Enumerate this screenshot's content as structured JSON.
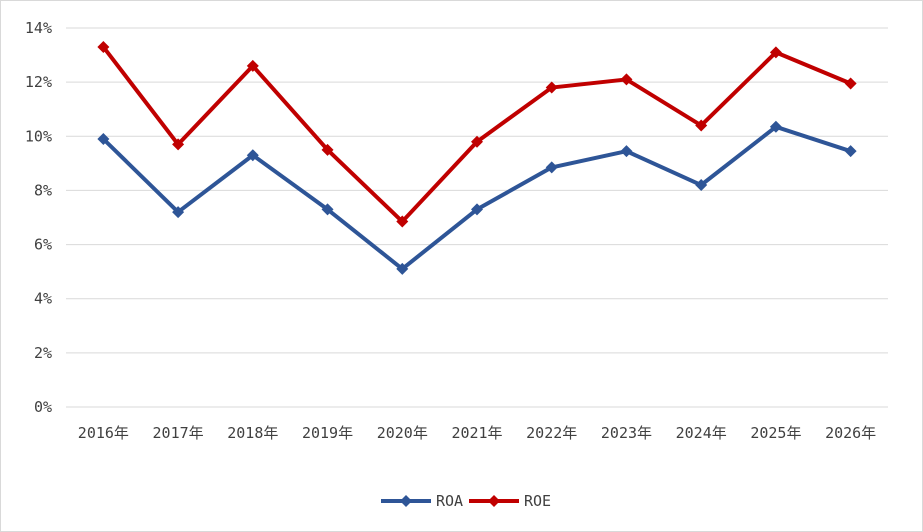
{
  "chart_data": {
    "type": "line",
    "categories": [
      "2016年",
      "2017年",
      "2018年",
      "2019年",
      "2020年",
      "2021年",
      "2022年",
      "2023年",
      "2024年",
      "2025年",
      "2026年"
    ],
    "series": [
      {
        "name": "ROA",
        "color": "#2e5597",
        "values": [
          9.9,
          7.2,
          9.3,
          7.3,
          5.1,
          7.3,
          8.85,
          9.45,
          8.2,
          10.35,
          9.45
        ]
      },
      {
        "name": "ROE",
        "color": "#c00000",
        "values": [
          13.3,
          9.7,
          12.6,
          9.5,
          6.85,
          9.8,
          11.8,
          12.1,
          10.4,
          13.1,
          11.95
        ]
      }
    ],
    "ylim": [
      0,
      14
    ],
    "yticks": [
      0,
      2,
      4,
      6,
      8,
      10,
      12,
      14
    ],
    "ytick_labels": [
      "0%",
      "2%",
      "4%",
      "6%",
      "8%",
      "10%",
      "12%",
      "14%"
    ],
    "grid": true,
    "legend_position": "bottom-center",
    "marker": "diamond"
  }
}
